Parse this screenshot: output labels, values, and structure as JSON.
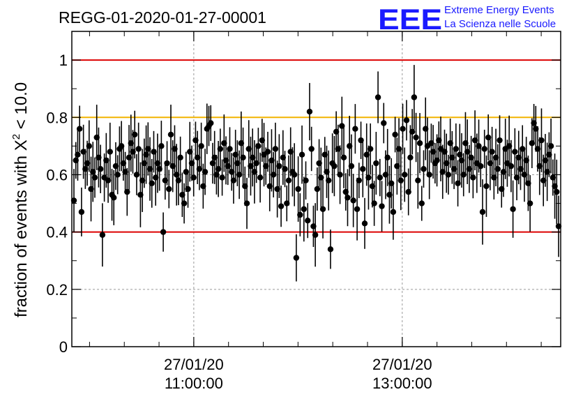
{
  "header": {
    "run_id": "REGG-01-2020-01-27-00001",
    "logo_text": "EEE",
    "logo_line1": "Extreme Energy Events",
    "logo_line2": "La Scienza nelle Scuole"
  },
  "colors": {
    "background": "#ffffff",
    "points": "#000000",
    "limit_lines": "#dd0000",
    "warn_line": "#f2b400",
    "grid": "#999999",
    "logo": "#1a1aff"
  },
  "chart_data": {
    "type": "scatter",
    "title": "REGG-01-2020-01-27-00001",
    "xlabel": "",
    "ylabel_prefix": "fraction of events with ",
    "ylabel_symbol": "X",
    "ylabel_sup": "2",
    "ylabel_suffix": " < 10.0",
    "xlim_hours": [
      9.83,
      14.52
    ],
    "ylim": [
      0,
      1.1
    ],
    "yticks": [
      {
        "value": 0,
        "label": "0"
      },
      {
        "value": 0.2,
        "label": "0.2"
      },
      {
        "value": 0.4,
        "label": "0.4"
      },
      {
        "value": 0.6,
        "label": "0.6"
      },
      {
        "value": 0.8,
        "label": "0.8"
      },
      {
        "value": 1,
        "label": "1"
      }
    ],
    "xticks": [
      {
        "hour": 11.0,
        "date": "27/01/20",
        "time": "11:00:00"
      },
      {
        "hour": 13.0,
        "date": "27/01/20",
        "time": "13:00:00"
      }
    ],
    "grid": true,
    "reference_lines": [
      {
        "value": 1.0,
        "color": "#dd0000"
      },
      {
        "value": 0.8,
        "color": "#f2b400"
      },
      {
        "value": 0.4,
        "color": "#dd0000"
      }
    ],
    "series": [
      {
        "marker": "circle",
        "y": [
          0.51,
          0.65,
          0.67,
          0.76,
          0.47,
          0.68,
          0.62,
          0.64,
          0.7,
          0.55,
          0.61,
          0.59,
          0.73,
          0.66,
          0.62,
          0.39,
          0.59,
          0.65,
          0.58,
          0.68,
          0.53,
          0.52,
          0.63,
          0.6,
          0.69,
          0.7,
          0.64,
          0.61,
          0.54,
          0.66,
          0.71,
          0.68,
          0.74,
          0.6,
          0.69,
          0.53,
          0.58,
          0.64,
          0.67,
          0.69,
          0.62,
          0.57,
          0.68,
          0.59,
          0.64,
          0.62,
          0.7,
          0.4,
          0.58,
          0.64,
          0.55,
          0.74,
          0.63,
          0.69,
          0.6,
          0.58,
          0.66,
          0.53,
          0.5,
          0.61,
          0.55,
          0.68,
          0.64,
          0.59,
          0.72,
          0.66,
          0.62,
          0.7,
          0.56,
          0.61,
          0.76,
          0.77,
          0.78,
          0.64,
          0.66,
          0.6,
          0.62,
          0.69,
          0.59,
          0.71,
          0.65,
          0.63,
          0.69,
          0.61,
          0.58,
          0.67,
          0.64,
          0.6,
          0.71,
          0.66,
          0.56,
          0.5,
          0.69,
          0.63,
          0.66,
          0.61,
          0.64,
          0.7,
          0.59,
          0.72,
          0.67,
          0.63,
          0.68,
          0.56,
          0.65,
          0.6,
          0.69,
          0.55,
          0.63,
          0.49,
          0.66,
          0.62,
          0.5,
          0.58,
          0.68,
          0.61,
          0.6,
          0.31,
          0.55,
          0.46,
          0.67,
          0.48,
          0.58,
          0.44,
          0.82,
          0.69,
          0.42,
          0.39,
          0.55,
          0.64,
          0.59,
          0.48,
          0.67,
          0.61,
          0.58,
          0.34,
          0.64,
          0.63,
          0.75,
          0.69,
          0.6,
          0.77,
          0.66,
          0.54,
          0.52,
          0.7,
          0.63,
          0.51,
          0.76,
          0.48,
          0.58,
          0.72,
          0.62,
          0.43,
          0.67,
          0.59,
          0.69,
          0.56,
          0.5,
          0.64,
          0.87,
          0.59,
          0.49,
          0.78,
          0.6,
          0.66,
          0.53,
          0.57,
          0.47,
          0.74,
          0.63,
          0.69,
          0.58,
          0.76,
          0.6,
          0.79,
          0.54,
          0.66,
          0.75,
          0.87,
          0.73,
          0.58,
          0.71,
          0.5,
          0.62,
          0.76,
          0.7,
          0.6,
          0.71,
          0.68,
          0.64,
          0.65,
          0.72,
          0.69,
          0.61,
          0.68,
          0.64,
          0.6,
          0.71,
          0.66,
          0.62,
          0.69,
          0.57,
          0.67,
          0.65,
          0.6,
          0.71,
          0.68,
          0.62,
          0.66,
          0.59,
          0.72,
          0.64,
          0.7,
          0.63,
          0.47,
          0.69,
          0.56,
          0.73,
          0.64,
          0.68,
          0.59,
          0.66,
          0.62,
          0.72,
          0.55,
          0.61,
          0.69,
          0.64,
          0.7,
          0.63,
          0.48,
          0.68,
          0.59,
          0.66,
          0.62,
          0.69,
          0.6,
          0.65,
          0.57,
          0.5,
          0.71,
          0.78,
          0.76,
          0.69,
          0.63,
          0.72,
          0.58,
          0.65,
          0.61,
          0.67,
          0.7,
          0.59,
          0.56,
          0.54,
          0.42
        ]
      }
    ]
  }
}
